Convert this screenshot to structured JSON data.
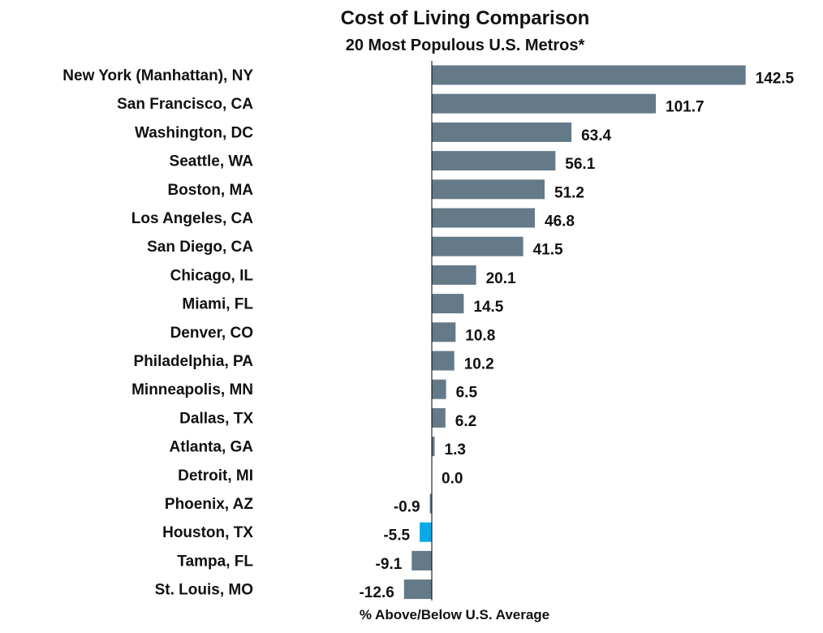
{
  "chart_data": {
    "type": "bar",
    "orientation": "horizontal",
    "title": "Cost of Living Comparison",
    "subtitle": "20 Most Populous U.S. Metros*",
    "xlabel": "% Above/Below U.S. Average",
    "ylabel": "",
    "xlim": [
      -15,
      145
    ],
    "grid": false,
    "legend": "none",
    "categories": [
      "New York (Manhattan), NY",
      "San Francisco, CA",
      "Washington, DC",
      "Seattle, WA",
      "Boston, MA",
      "Los Angeles, CA",
      "San Diego, CA",
      "Chicago, IL",
      "Miami, FL",
      "Denver, CO",
      "Philadelphia, PA",
      "Minneapolis, MN",
      "Dallas, TX",
      "Atlanta, GA",
      "Detroit, MI",
      "Phoenix, AZ",
      "Houston, TX",
      "Tampa, FL",
      "St. Louis, MO"
    ],
    "values": [
      142.5,
      101.7,
      63.4,
      56.1,
      51.2,
      46.8,
      41.5,
      20.1,
      14.5,
      10.8,
      10.2,
      6.5,
      6.2,
      1.3,
      0.0,
      -0.9,
      -5.5,
      -9.1,
      -12.6
    ],
    "value_labels": [
      "142.5",
      "101.7",
      "63.4",
      "56.1",
      "51.2",
      "46.8",
      "41.5",
      "20.1",
      "14.5",
      "10.8",
      "10.2",
      "6.5",
      "6.2",
      "1.3",
      "0.0",
      "-0.9",
      "-5.5",
      "-9.1",
      "-12.6"
    ],
    "highlight_category": "Houston, TX",
    "colors": {
      "bar": "#647a89",
      "highlight": "#0aa8e6",
      "axis": "#000000",
      "text": "#111111"
    }
  }
}
